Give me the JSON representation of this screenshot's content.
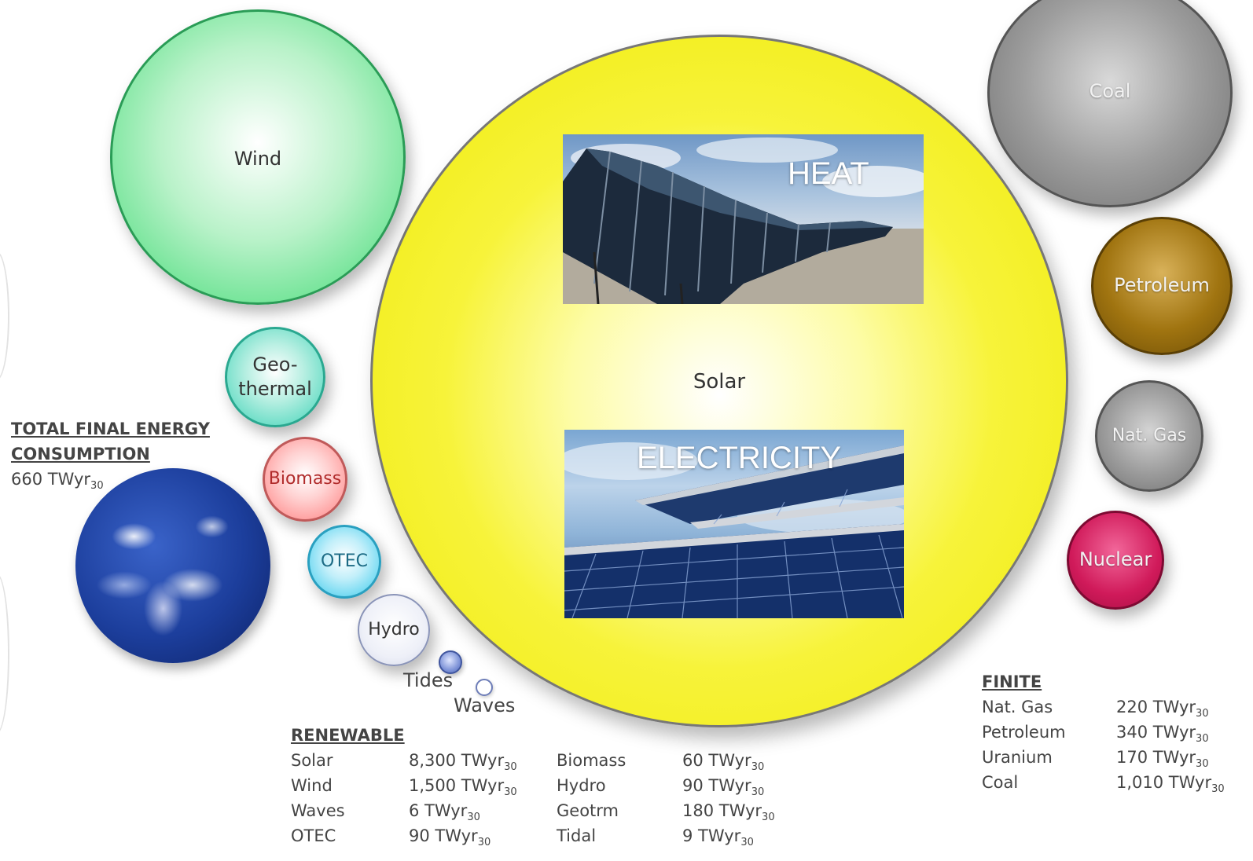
{
  "bubbles": {
    "solar": "Solar",
    "wind": "Wind",
    "geothermal_line1": "Geo-",
    "geothermal_line2": "thermal",
    "biomass": "Biomass",
    "otec": "OTEC",
    "hydro": "Hydro",
    "tides": "Tides",
    "waves": "Waves",
    "coal": "Coal",
    "petroleum": "Petroleum",
    "natgas": "Nat. Gas",
    "nuclear": "Nuclear"
  },
  "photos": {
    "heat": "HEAT",
    "electricity": "ELECTRICITY"
  },
  "total": {
    "heading_line1": "TOTAL FINAL ENERGY",
    "heading_line2": "CONSUMPTION",
    "value": "660 TWyr",
    "value_sub": "30"
  },
  "renewable": {
    "heading": "RENEWABLE",
    "col1": [
      {
        "name": "Solar",
        "value": "8,300 TWyr",
        "sub": "30"
      },
      {
        "name": "Wind",
        "value": "1,500 TWyr",
        "sub": "30"
      },
      {
        "name": "Waves",
        "value": "6 TWyr",
        "sub": "30"
      },
      {
        "name": "OTEC",
        "value": "90 TWyr",
        "sub": "30"
      }
    ],
    "col2": [
      {
        "name": "Biomass",
        "value": "60 TWyr",
        "sub": "30"
      },
      {
        "name": "Hydro",
        "value": "90 TWyr",
        "sub": "30"
      },
      {
        "name": "Geotrm",
        "value": "180 TWyr",
        "sub": "30"
      },
      {
        "name": "Tidal",
        "value": "9 TWyr",
        "sub": "30"
      }
    ]
  },
  "finite": {
    "heading": "FINITE",
    "rows": [
      {
        "name": "Nat. Gas",
        "value": "220 TWyr",
        "sub": "30"
      },
      {
        "name": "Petroleum",
        "value": "340 TWyr",
        "sub": "30"
      },
      {
        "name": "Uranium",
        "value": "170 TWyr",
        "sub": "30"
      },
      {
        "name": "Coal",
        "value": "1,010 TWyr",
        "sub": "30"
      }
    ]
  },
  "colors": {
    "solar": "#eee91a",
    "wind": "#3ccf6d",
    "geothermal": "#36c8ac",
    "biomass": "#f27070",
    "otec": "#33c2e6",
    "coal": "#6e6e6e",
    "petroleum": "#a07410",
    "natgas": "#9c9c9c",
    "nuclear": "#d01a5a"
  }
}
